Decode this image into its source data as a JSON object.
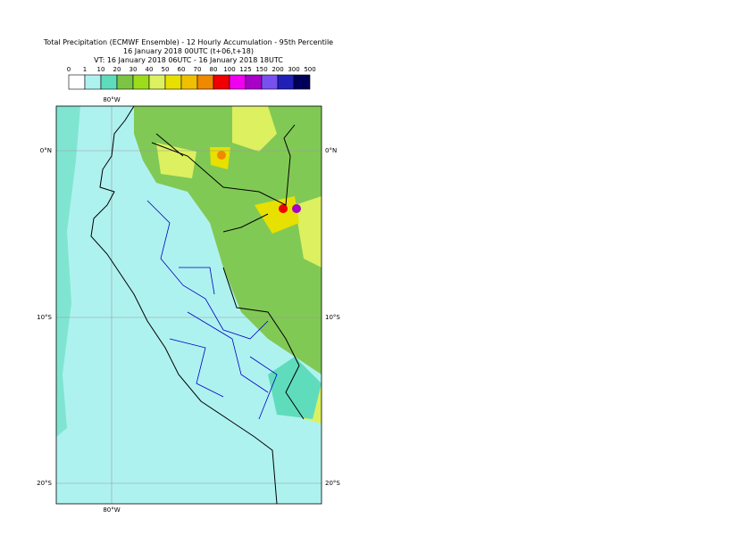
{
  "header": {
    "title": "Total Precipitation (ECMWF Ensemble) - 12 Hourly Accumulation - 95th Percentile",
    "subtitle": "16 January 2018 00UTC (t+06,t+18)",
    "valid": "VT: 16 January 2018 06UTC - 16 January 2018 18UTC"
  },
  "legend": {
    "ticks": [
      "0",
      "1",
      "10",
      "20",
      "30",
      "40",
      "50",
      "60",
      "70",
      "80",
      "100",
      "125",
      "150",
      "200",
      "300",
      "500"
    ],
    "colors": [
      "#ffffff",
      "#aef2f0",
      "#5fdcbc",
      "#7cc444",
      "#9cdc1c",
      "#dcf060",
      "#e8e000",
      "#f0c000",
      "#f08800",
      "#f00000",
      "#f000f0",
      "#a800c8",
      "#7850f0",
      "#2020b8",
      "#000058"
    ]
  },
  "map": {
    "labels": {
      "lon_top": "80°W",
      "lon_bottom": "80°W",
      "lat0_left": "0°N",
      "lat0_right": "0°N",
      "lat10_left": "10°S",
      "lat10_right": "10°S",
      "lat20_left": "20°S",
      "lat20_right": "20°S"
    }
  }
}
